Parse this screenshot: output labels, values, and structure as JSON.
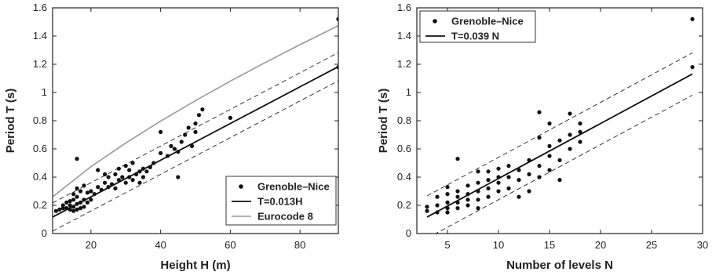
{
  "chart_data": [
    {
      "type": "scatter",
      "xlabel": "Height H (m)",
      "ylabel": "Period T (s)",
      "xlim": [
        9,
        91
      ],
      "ylim": [
        0,
        1.6
      ],
      "xticks": [
        20,
        40,
        60,
        80
      ],
      "yticks": [
        0,
        0.2,
        0.4,
        0.6,
        0.8,
        1,
        1.2,
        1.4,
        1.6
      ],
      "ytick_labels": [
        "0",
        "0.2",
        "0.4",
        "0.6",
        "0.8",
        "1",
        "1.2",
        "1.4",
        "1.6"
      ],
      "grid": false,
      "legend_position": "bottom-right",
      "series": [
        {
          "name": "Grenoble–Nice",
          "kind": "points",
          "x": [
            10,
            11,
            12,
            12,
            13,
            13,
            14,
            14,
            14,
            15,
            15,
            15,
            15,
            16,
            16,
            16,
            16,
            17,
            17,
            17,
            18,
            18,
            18,
            19,
            19,
            20,
            20,
            21,
            22,
            22,
            23,
            24,
            24,
            25,
            25,
            26,
            27,
            27,
            28,
            28,
            29,
            30,
            30,
            31,
            31,
            32,
            32,
            33,
            34,
            34,
            35,
            35,
            36,
            37,
            38,
            40,
            40,
            42,
            43,
            44,
            45,
            45,
            46,
            47,
            48,
            49,
            50,
            50,
            51,
            52,
            16,
            60,
            91,
            91
          ],
          "y": [
            0.16,
            0.17,
            0.18,
            0.2,
            0.18,
            0.22,
            0.17,
            0.2,
            0.23,
            0.16,
            0.19,
            0.24,
            0.28,
            0.17,
            0.21,
            0.26,
            0.32,
            0.18,
            0.22,
            0.3,
            0.19,
            0.24,
            0.34,
            0.22,
            0.29,
            0.24,
            0.3,
            0.28,
            0.33,
            0.45,
            0.31,
            0.36,
            0.42,
            0.33,
            0.4,
            0.35,
            0.32,
            0.42,
            0.38,
            0.46,
            0.4,
            0.36,
            0.48,
            0.4,
            0.45,
            0.38,
            0.5,
            0.42,
            0.44,
            0.36,
            0.46,
            0.4,
            0.44,
            0.47,
            0.5,
            0.57,
            0.72,
            0.55,
            0.62,
            0.6,
            0.4,
            0.58,
            0.65,
            0.7,
            0.75,
            0.62,
            0.78,
            0.72,
            0.84,
            0.88,
            0.53,
            0.82,
            1.52,
            1.18
          ]
        },
        {
          "name": "T=0.013H",
          "kind": "line",
          "x": [
            9,
            91
          ],
          "y": [
            0.117,
            1.183
          ]
        },
        {
          "name": "Eurocode 8",
          "kind": "line",
          "x": [
            9,
            20,
            30,
            40,
            50,
            60,
            70,
            80,
            91
          ],
          "y": [
            0.26,
            0.474,
            0.642,
            0.797,
            0.942,
            1.08,
            1.212,
            1.339,
            1.474
          ]
        },
        {
          "kind": "dashed",
          "x": [
            9,
            91
          ],
          "y": [
            0.017,
            1.083
          ]
        },
        {
          "kind": "dashed",
          "x": [
            9,
            91
          ],
          "y": [
            0.217,
            1.283
          ]
        }
      ]
    },
    {
      "type": "scatter",
      "xlabel": "Number of levels N",
      "ylabel": "Period T (s)",
      "xlim": [
        2,
        30
      ],
      "ylim": [
        0,
        1.6
      ],
      "xticks": [
        5,
        10,
        15,
        20,
        25,
        30
      ],
      "yticks": [
        0,
        0.2,
        0.4,
        0.6,
        0.8,
        1,
        1.2,
        1.4,
        1.6
      ],
      "ytick_labels": [
        "0",
        "0.2",
        "0.4",
        "0.6",
        "0.8",
        "1",
        "1.2",
        "1.4",
        "1.6"
      ],
      "grid": false,
      "legend_position": "top-left",
      "series": [
        {
          "name": "Grenoble–Nice",
          "kind": "points",
          "x": [
            3,
            3,
            4,
            4,
            4,
            5,
            5,
            5,
            5,
            5,
            6,
            6,
            6,
            6,
            7,
            7,
            7,
            7,
            8,
            8,
            8,
            8,
            8,
            9,
            9,
            9,
            9,
            10,
            10,
            10,
            10,
            11,
            11,
            11,
            12,
            12,
            12,
            13,
            13,
            13,
            14,
            14,
            14,
            14,
            15,
            15,
            15,
            15,
            16,
            16,
            16,
            17,
            17,
            17,
            18,
            18,
            18,
            6,
            29,
            29
          ],
          "y": [
            0.16,
            0.19,
            0.15,
            0.2,
            0.26,
            0.15,
            0.18,
            0.22,
            0.28,
            0.33,
            0.18,
            0.22,
            0.26,
            0.3,
            0.2,
            0.24,
            0.28,
            0.34,
            0.18,
            0.24,
            0.3,
            0.36,
            0.44,
            0.26,
            0.32,
            0.38,
            0.44,
            0.3,
            0.36,
            0.4,
            0.46,
            0.32,
            0.4,
            0.48,
            0.26,
            0.38,
            0.45,
            0.3,
            0.42,
            0.52,
            0.4,
            0.48,
            0.68,
            0.86,
            0.45,
            0.55,
            0.62,
            0.78,
            0.38,
            0.52,
            0.66,
            0.6,
            0.7,
            0.85,
            0.65,
            0.72,
            0.78,
            0.53,
            1.52,
            1.18
          ]
        },
        {
          "name": "T=0.039 N",
          "kind": "line",
          "x": [
            3,
            29
          ],
          "y": [
            0.117,
            1.131
          ]
        },
        {
          "kind": "dashed",
          "x": [
            3,
            29
          ],
          "y": [
            0.267,
            1.281
          ]
        },
        {
          "kind": "dashed",
          "x": [
            3,
            29
          ],
          "y": [
            -0.033,
            0.981
          ]
        }
      ]
    }
  ]
}
